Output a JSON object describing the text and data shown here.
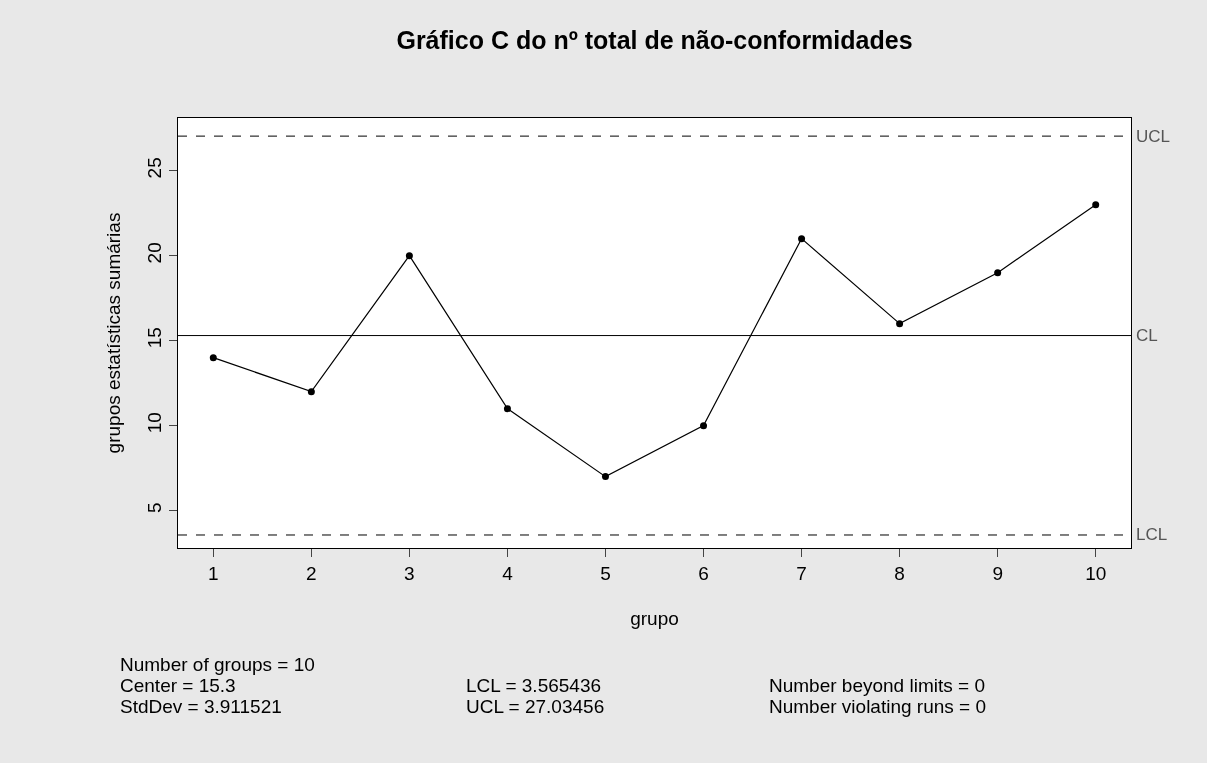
{
  "chart_data": {
    "type": "line",
    "title": "Gráfico C do nº total de não-conformidades",
    "xlabel": "grupo",
    "ylabel": "grupos estatísticas sumárias",
    "x": [
      1,
      2,
      3,
      4,
      5,
      6,
      7,
      8,
      9,
      10
    ],
    "series": [
      {
        "color": "#000000",
        "values": [
          14,
          12,
          20,
          11,
          7,
          10,
          21,
          16,
          19,
          23
        ]
      }
    ],
    "xlim": [
      0.64,
      10.36
    ],
    "xticks": [
      1,
      2,
      3,
      4,
      5,
      6,
      7,
      8,
      9,
      10
    ],
    "ylim": [
      2.8,
      28.1
    ],
    "yticks": [
      5,
      10,
      15,
      20,
      25
    ],
    "ref_lines": [
      {
        "axis": "y",
        "value": 27.03456,
        "label": "UCL",
        "color": "#000000",
        "line_style": "dashed"
      },
      {
        "axis": "y",
        "value": 15.3,
        "label": "CL",
        "color": "#000000",
        "line_style": "solid"
      },
      {
        "axis": "y",
        "value": 3.565436,
        "label": "LCL",
        "color": "#000000",
        "line_style": "dashed"
      }
    ],
    "annotations": [
      "Number of groups = 10",
      "Center = 15.3",
      "StdDev = 3.911521",
      "LCL = 3.565436",
      "UCL = 27.03456",
      "Number beyond limits = 0",
      "Number violating runs = 0"
    ],
    "marker": "circle",
    "line_style": "solid"
  }
}
